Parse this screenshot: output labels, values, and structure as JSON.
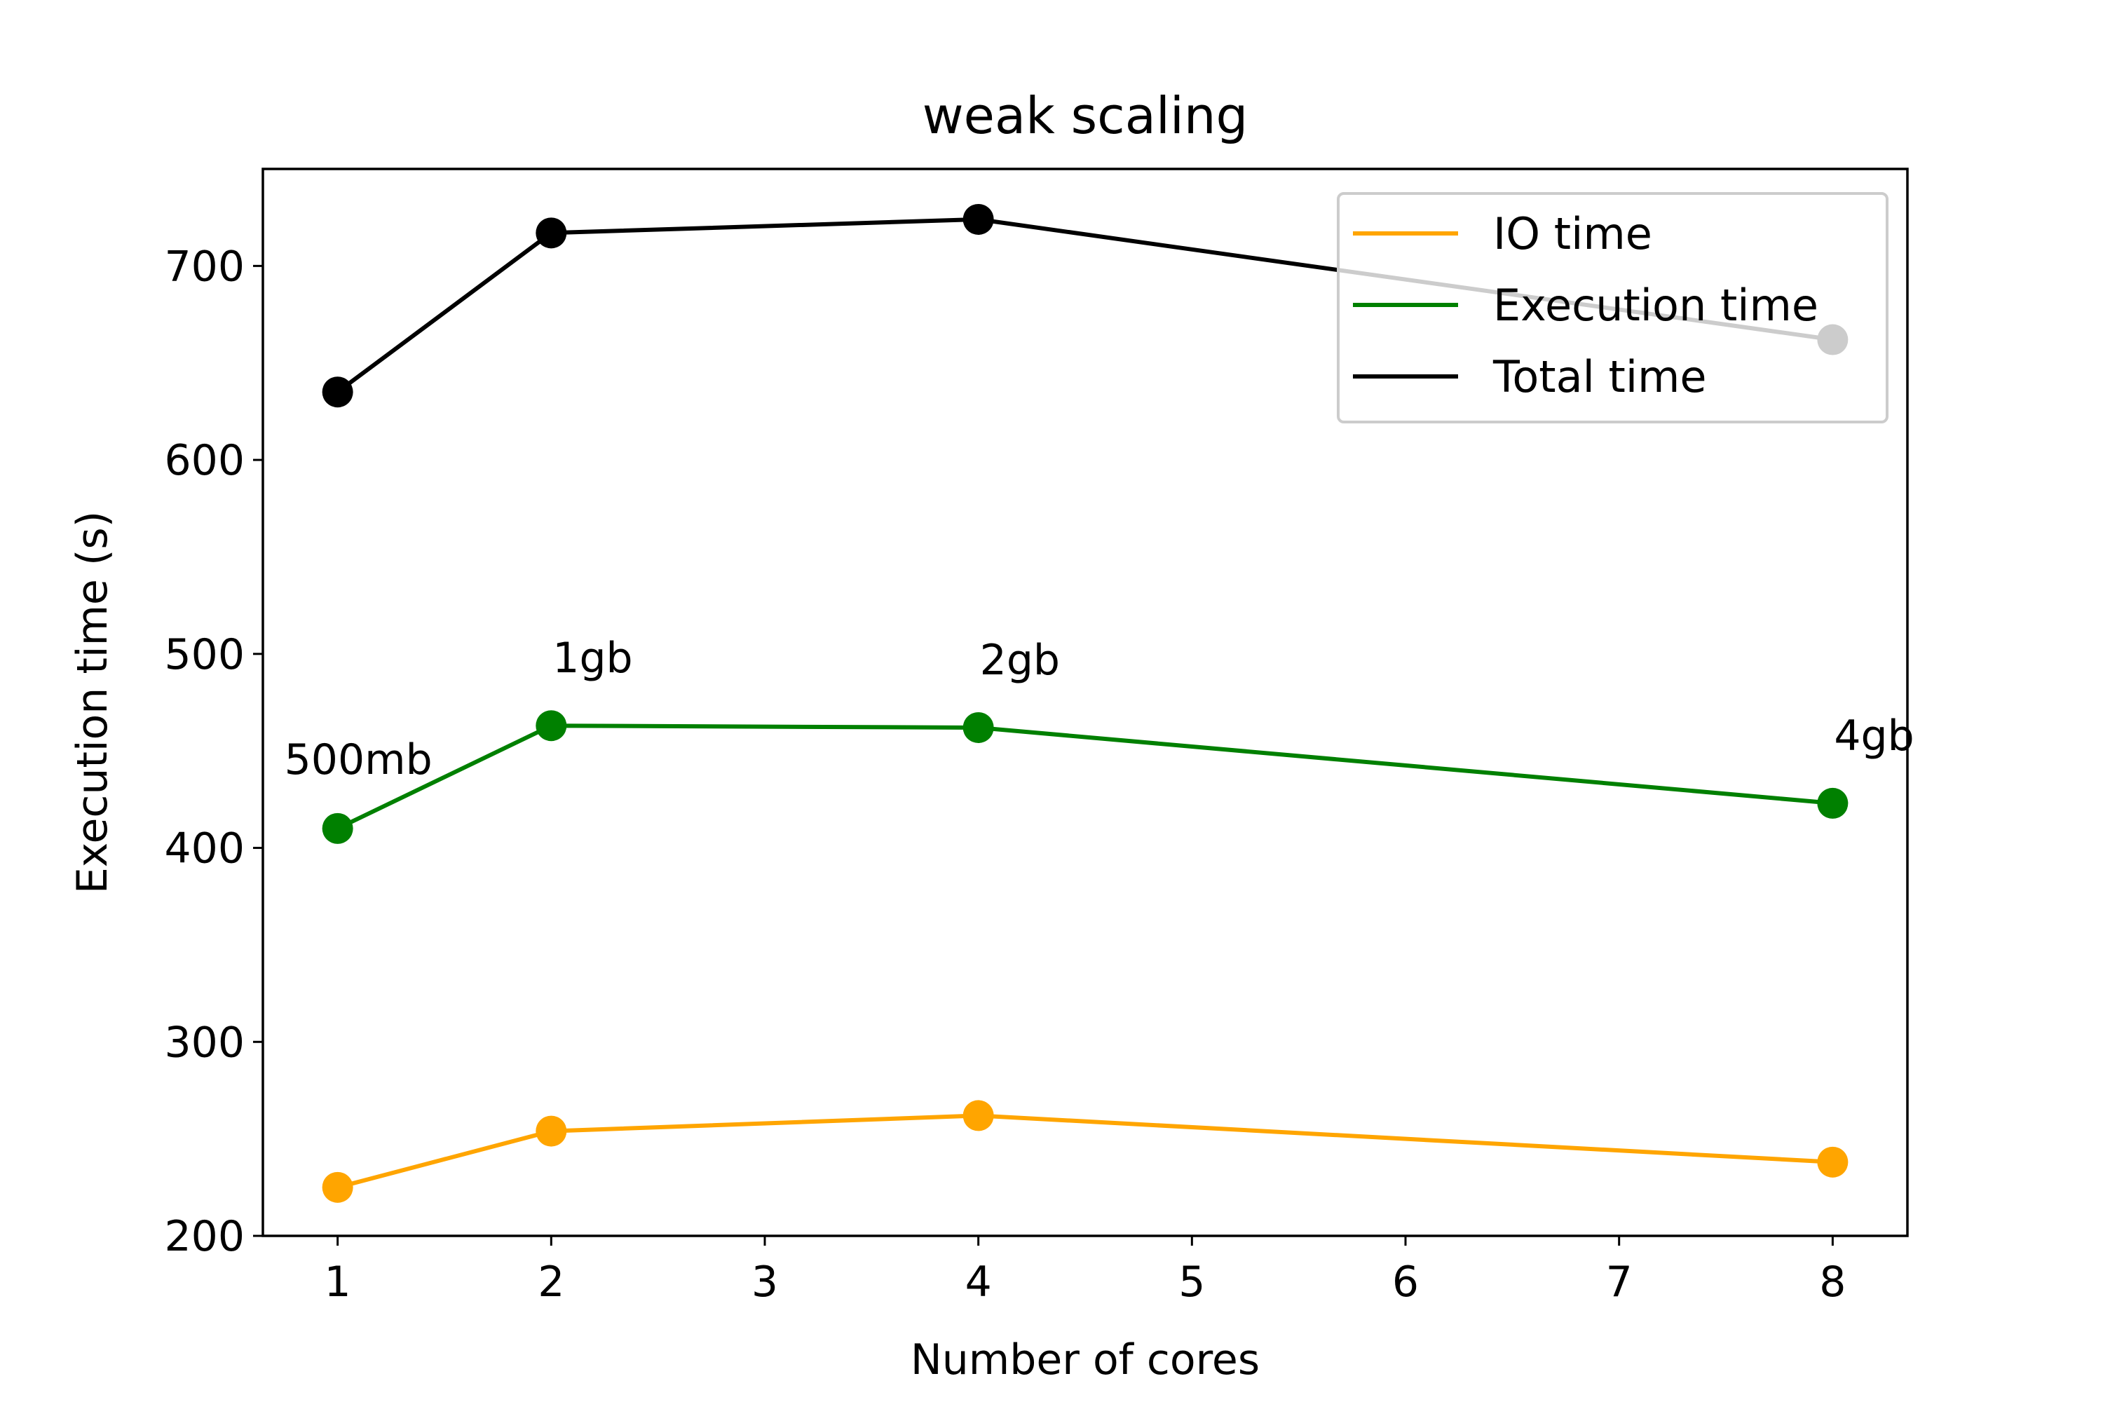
{
  "chart_data": {
    "type": "line",
    "title": "weak scaling",
    "xlabel": "Number of cores",
    "ylabel": "Execution time (s)",
    "x_tick_labels": [
      "1",
      "2",
      "3",
      "4",
      "5",
      "6",
      "7",
      "8"
    ],
    "y_ticks": [
      200,
      300,
      400,
      500,
      600,
      700
    ],
    "xlim": [
      0.65,
      8.35
    ],
    "ylim": [
      200,
      750
    ],
    "grid": false,
    "legend_position": "top-right",
    "x_positions": [
      1,
      2,
      4,
      8
    ],
    "point_labels": [
      "500mb",
      "1gb",
      "2gb",
      "4gb"
    ],
    "series": [
      {
        "name": "IO time",
        "color": "#FFA500",
        "y": [
          225,
          254,
          262,
          238
        ]
      },
      {
        "name": "Execution time",
        "color": "#008000",
        "y": [
          410,
          463,
          462,
          423
        ]
      },
      {
        "name": "Total time",
        "color": "#000000",
        "y": [
          635,
          717,
          724,
          662
        ]
      }
    ]
  }
}
